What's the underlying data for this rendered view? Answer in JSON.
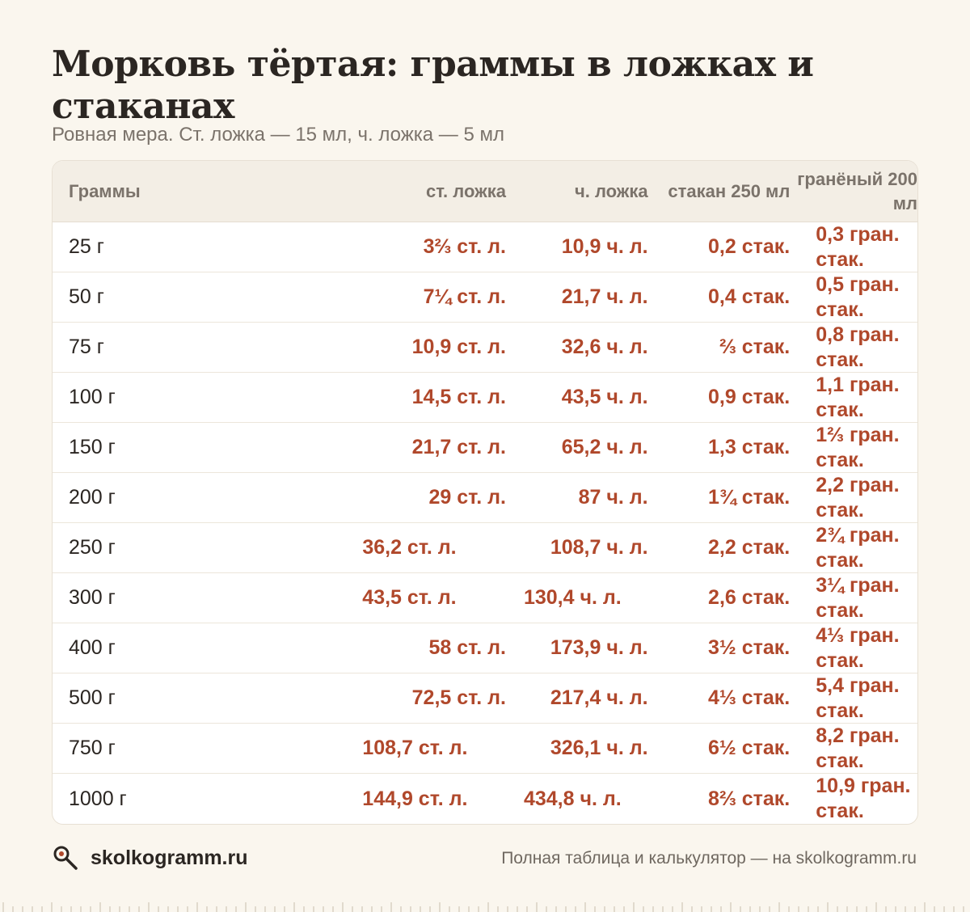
{
  "title": "Морковь тёртая: граммы в ложках и стаканах",
  "subtitle": "Ровная мера. Ст. ложка — 15 мл, ч. ложка — 5 мл",
  "table": {
    "headers": {
      "grams": "Граммы",
      "tbsp": "ст. ложка",
      "tsp": "ч. ложка",
      "cup": "стакан 250 мл",
      "faceted": "гранёный 200 мл"
    },
    "rows": [
      {
        "grams": "25 г",
        "tbsp": "3⅔ ст. л.",
        "tsp": "10,9 ч. л.",
        "cup": "0,2 стак.",
        "faceted": "0,3 гран. стак."
      },
      {
        "grams": "50 г",
        "tbsp": "7¼ ст. л.",
        "tsp": "21,7 ч. л.",
        "cup": "0,4 стак.",
        "faceted": "0,5 гран. стак."
      },
      {
        "grams": "75 г",
        "tbsp": "10,9 ст. л.",
        "tsp": "32,6 ч. л.",
        "cup": "⅔ стак.",
        "faceted": "0,8 гран. стак."
      },
      {
        "grams": "100 г",
        "tbsp": "14,5 ст. л.",
        "tsp": "43,5 ч. л.",
        "cup": "0,9 стак.",
        "faceted": "1,1 гран. стак."
      },
      {
        "grams": "150 г",
        "tbsp": "21,7 ст. л.",
        "tsp": "65,2 ч. л.",
        "cup": "1,3 стак.",
        "faceted": "1⅔ гран. стак."
      },
      {
        "grams": "200 г",
        "tbsp": "29 ст. л.",
        "tsp": "87 ч. л.",
        "cup": "1¾ стак.",
        "faceted": "2,2 гран. стак."
      },
      {
        "grams": "250 г",
        "tbsp": "36,2 ст. л.",
        "tsp": "108,7 ч. л.",
        "cup": "2,2 стак.",
        "faceted": "2¾ гран. стак."
      },
      {
        "grams": "300 г",
        "tbsp": "43,5 ст. л.",
        "tsp": "130,4 ч. л.",
        "cup": "2,6 стак.",
        "faceted": "3¼ гран. стак."
      },
      {
        "grams": "400 г",
        "tbsp": "58 ст. л.",
        "tsp": "173,9 ч. л.",
        "cup": "3½ стак.",
        "faceted": "4⅓ гран. стак."
      },
      {
        "grams": "500 г",
        "tbsp": "72,5 ст. л.",
        "tsp": "217,4 ч. л.",
        "cup": "4⅓ стак.",
        "faceted": "5,4 гран. стак."
      },
      {
        "grams": "750 г",
        "tbsp": "108,7 ст. л.",
        "tsp": "326,1 ч. л.",
        "cup": "6½ стак.",
        "faceted": "8,2 гран. стак."
      },
      {
        "grams": "1000 г",
        "tbsp": "144,9 ст. л.",
        "tsp": "434,8 ч. л.",
        "cup": "8⅔ стак.",
        "faceted": "10,9 гран. стак."
      }
    ]
  },
  "footer": {
    "brand": "skolkogramm.ru",
    "note": "Полная таблица и калькулятор — на skolkogramm.ru"
  },
  "colors": {
    "background": "#faf6ee",
    "accent": "#b0482b",
    "header_bg": "#f3eee5"
  },
  "icons": {
    "brand": "magnifier-icon"
  }
}
